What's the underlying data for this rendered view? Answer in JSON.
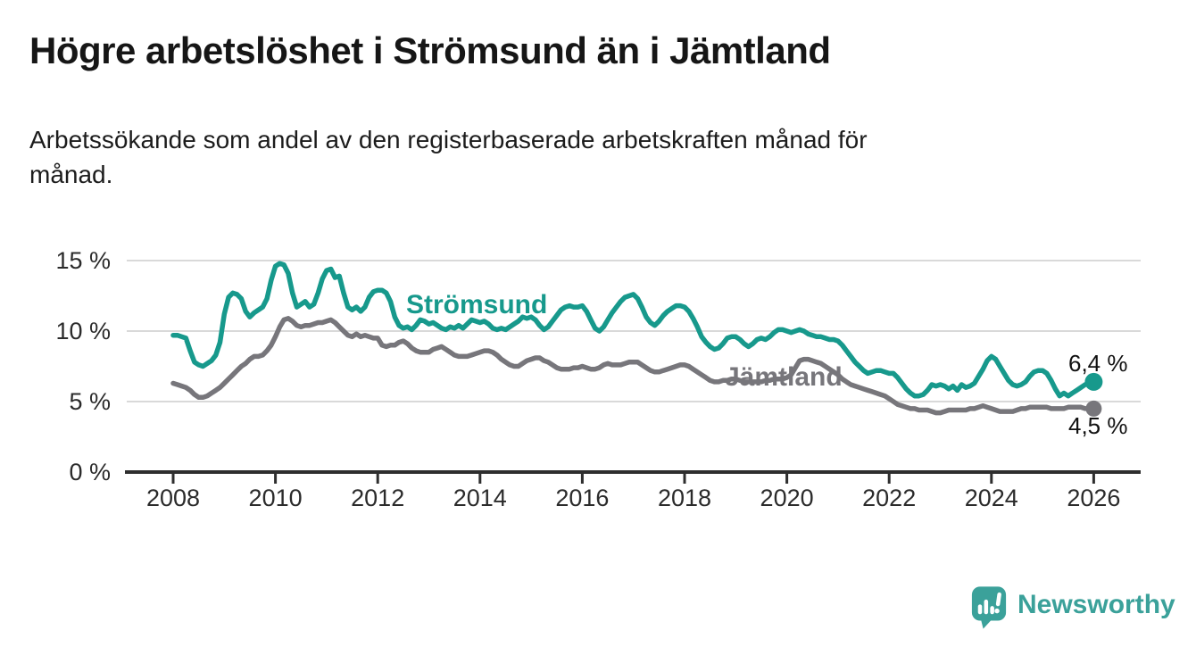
{
  "header": {
    "title": "Högre arbetslöshet i Strömsund än i Jämtland",
    "subtitle": "Arbetssökande som andel av den registerbaserade arbetskraften månad för månad.",
    "subtitle_lines": [
      "Arbetssökande som andel av den registerbaserade arbetskraften månad för",
      "månad."
    ]
  },
  "branding": {
    "logo_text": "Newsworthy",
    "logo_icon": "newsworthy-speech-bubble-bar-chart-icon",
    "logo_color": "#3ba19a"
  },
  "colors": {
    "stromsund_teal": "#17998c",
    "jamtland_gray": "#77767b",
    "gridline": "#d9d9d9",
    "axis": "#2e2e2e",
    "text": "#161616"
  },
  "chart_data": {
    "type": "line",
    "title": "Högre arbetslöshet i Strömsund än i Jämtland",
    "xlabel": "",
    "ylabel": "",
    "x_unit": "month",
    "x_start_year": 2008,
    "x_end_year": 2026,
    "ylim": [
      0,
      16.5
    ],
    "grid": "horizontal",
    "legend_position": "inline-labels",
    "yticks": [
      {
        "value": 15,
        "label": "15 %"
      },
      {
        "value": 10,
        "label": "10 %"
      },
      {
        "value": 5,
        "label": "5 %"
      },
      {
        "value": 0,
        "label": "0 %"
      }
    ],
    "xticks": [
      {
        "year": 2008,
        "label": "2008"
      },
      {
        "year": 2010,
        "label": "2010"
      },
      {
        "year": 2012,
        "label": "2012"
      },
      {
        "year": 2014,
        "label": "2014"
      },
      {
        "year": 2016,
        "label": "2016"
      },
      {
        "year": 2018,
        "label": "2018"
      },
      {
        "year": 2020,
        "label": "2020"
      },
      {
        "year": 2022,
        "label": "2022"
      },
      {
        "year": 2024,
        "label": "2024"
      },
      {
        "year": 2026,
        "label": "2026"
      }
    ],
    "series": [
      {
        "name": "Strömsund",
        "color": "#17998c",
        "end_label": "6,4 %",
        "end_value": 6.4,
        "values": [
          9.7,
          9.7,
          9.6,
          9.5,
          8.6,
          7.8,
          7.6,
          7.5,
          7.7,
          7.9,
          8.3,
          9.2,
          11.2,
          12.4,
          12.7,
          12.6,
          12.3,
          11.4,
          11.0,
          11.3,
          11.5,
          11.7,
          12.3,
          13.6,
          14.6,
          14.8,
          14.7,
          14.1,
          12.7,
          11.7,
          11.9,
          12.1,
          11.7,
          11.9,
          12.7,
          13.7,
          14.3,
          14.4,
          13.8,
          13.9,
          12.7,
          11.7,
          11.5,
          11.7,
          11.4,
          11.7,
          12.4,
          12.8,
          12.9,
          12.9,
          12.7,
          12.1,
          11.0,
          10.4,
          10.2,
          10.3,
          10.1,
          10.4,
          10.8,
          10.7,
          10.5,
          10.6,
          10.4,
          10.2,
          10.1,
          10.3,
          10.2,
          10.4,
          10.2,
          10.5,
          10.8,
          10.7,
          10.6,
          10.7,
          10.5,
          10.2,
          10.1,
          10.2,
          10.1,
          10.3,
          10.5,
          10.7,
          11.0,
          10.9,
          11.0,
          10.8,
          10.4,
          10.1,
          10.3,
          10.7,
          11.1,
          11.5,
          11.7,
          11.8,
          11.7,
          11.7,
          11.8,
          11.4,
          10.8,
          10.2,
          10.0,
          10.3,
          10.8,
          11.3,
          11.7,
          12.1,
          12.4,
          12.5,
          12.6,
          12.3,
          11.7,
          11.0,
          10.6,
          10.4,
          10.7,
          11.1,
          11.4,
          11.6,
          11.8,
          11.8,
          11.7,
          11.4,
          10.9,
          10.3,
          9.6,
          9.2,
          8.9,
          8.7,
          8.8,
          9.1,
          9.5,
          9.6,
          9.6,
          9.4,
          9.1,
          8.9,
          9.1,
          9.4,
          9.5,
          9.4,
          9.6,
          9.9,
          10.1,
          10.1,
          10.0,
          9.9,
          10.0,
          10.1,
          10.0,
          9.8,
          9.7,
          9.6,
          9.6,
          9.5,
          9.4,
          9.4,
          9.3,
          9.0,
          8.6,
          8.2,
          7.8,
          7.5,
          7.2,
          7.0,
          7.1,
          7.2,
          7.2,
          7.1,
          7.0,
          7.0,
          6.7,
          6.3,
          5.9,
          5.6,
          5.4,
          5.4,
          5.5,
          5.8,
          6.2,
          6.1,
          6.2,
          6.1,
          5.9,
          6.1,
          5.8,
          6.2,
          6.0,
          6.1,
          6.3,
          6.8,
          7.3,
          7.9,
          8.2,
          8.0,
          7.5,
          7.0,
          6.5,
          6.2,
          6.1,
          6.2,
          6.4,
          6.8,
          7.1,
          7.2,
          7.2,
          7.0,
          6.5,
          5.9,
          5.4,
          5.6,
          5.4,
          5.6,
          5.8,
          6.0,
          6.2,
          6.3,
          6.4
        ]
      },
      {
        "name": "Jämtland",
        "color": "#77767b",
        "end_label": "4,5 %",
        "end_value": 4.5,
        "values": [
          6.3,
          6.2,
          6.1,
          6.0,
          5.8,
          5.5,
          5.3,
          5.3,
          5.4,
          5.6,
          5.8,
          6.0,
          6.3,
          6.6,
          6.9,
          7.2,
          7.5,
          7.7,
          8.0,
          8.2,
          8.2,
          8.3,
          8.6,
          9.0,
          9.6,
          10.3,
          10.8,
          10.9,
          10.7,
          10.4,
          10.3,
          10.4,
          10.4,
          10.5,
          10.6,
          10.6,
          10.7,
          10.8,
          10.6,
          10.3,
          10.0,
          9.7,
          9.6,
          9.8,
          9.6,
          9.7,
          9.6,
          9.5,
          9.5,
          9.0,
          8.9,
          9.0,
          9.0,
          9.2,
          9.3,
          9.1,
          8.8,
          8.6,
          8.5,
          8.5,
          8.5,
          8.7,
          8.8,
          8.9,
          8.7,
          8.5,
          8.3,
          8.2,
          8.2,
          8.2,
          8.3,
          8.4,
          8.5,
          8.6,
          8.6,
          8.5,
          8.3,
          8.0,
          7.8,
          7.6,
          7.5,
          7.5,
          7.7,
          7.9,
          8.0,
          8.1,
          8.1,
          7.9,
          7.8,
          7.6,
          7.4,
          7.3,
          7.3,
          7.3,
          7.4,
          7.4,
          7.5,
          7.4,
          7.3,
          7.3,
          7.4,
          7.6,
          7.7,
          7.6,
          7.6,
          7.6,
          7.7,
          7.8,
          7.8,
          7.8,
          7.6,
          7.4,
          7.2,
          7.1,
          7.1,
          7.2,
          7.3,
          7.4,
          7.5,
          7.6,
          7.6,
          7.5,
          7.3,
          7.1,
          6.9,
          6.7,
          6.5,
          6.4,
          6.4,
          6.5,
          6.5,
          6.6,
          6.6,
          6.5,
          6.4,
          6.4,
          6.4,
          6.4,
          6.4,
          6.5,
          6.5,
          6.6,
          6.6,
          6.6,
          6.7,
          6.9,
          7.4,
          7.9,
          8.0,
          8.0,
          7.9,
          7.8,
          7.7,
          7.5,
          7.3,
          7.1,
          6.9,
          6.6,
          6.4,
          6.2,
          6.1,
          6.0,
          5.9,
          5.8,
          5.7,
          5.6,
          5.5,
          5.4,
          5.2,
          5.0,
          4.8,
          4.7,
          4.6,
          4.5,
          4.5,
          4.4,
          4.4,
          4.4,
          4.3,
          4.2,
          4.2,
          4.3,
          4.4,
          4.4,
          4.4,
          4.4,
          4.4,
          4.5,
          4.5,
          4.6,
          4.7,
          4.6,
          4.5,
          4.4,
          4.3,
          4.3,
          4.3,
          4.3,
          4.4,
          4.5,
          4.5,
          4.6,
          4.6,
          4.6,
          4.6,
          4.6,
          4.5,
          4.5,
          4.5,
          4.5,
          4.6,
          4.6,
          4.6,
          4.6,
          4.5,
          4.5,
          4.5
        ]
      }
    ]
  }
}
